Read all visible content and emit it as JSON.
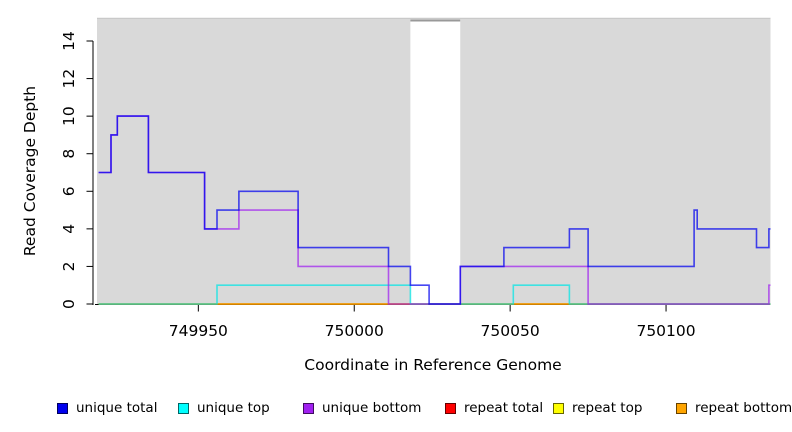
{
  "figure": {
    "xlabel": "Coordinate in Reference Genome",
    "ylabel": "Read Coverage Depth"
  },
  "legend": [
    {
      "label": "unique total",
      "color": "#0000ee"
    },
    {
      "label": "unique top",
      "color": "#00ffff"
    },
    {
      "label": "unique bottom",
      "color": "#a020f0"
    },
    {
      "label": "repeat total",
      "color": "#ff0000"
    },
    {
      "label": "repeat top",
      "color": "#ffff00"
    },
    {
      "label": "repeat bottom",
      "color": "#ffa500"
    }
  ],
  "chart_data": {
    "type": "line",
    "subtype": "step-after",
    "title": "",
    "xlabel": "Coordinate in Reference Genome",
    "ylabel": "Read Coverage Depth",
    "xlim": [
      749917.5,
      750133.5
    ],
    "ylim": [
      0,
      15.2
    ],
    "xticks": [
      749950,
      750000,
      750050,
      750100
    ],
    "yticks": [
      0,
      2,
      4,
      6,
      8,
      10,
      12,
      14
    ],
    "grid": "off",
    "legend_position": "bottom",
    "plot_background": "#d9d9d9",
    "line_alpha": 0.72,
    "no_data_gap": {
      "start": 750018,
      "end": 750034
    },
    "series": [
      {
        "name": "repeat total",
        "color": "#dd0000",
        "points": [
          [
            749918,
            0
          ]
        ]
      },
      {
        "name": "repeat top",
        "color": "#dddd00",
        "points": [
          [
            749918,
            0
          ]
        ]
      },
      {
        "name": "repeat bottom",
        "color": "#ff9900",
        "points": [
          [
            749918,
            0
          ]
        ]
      },
      {
        "name": "unique top",
        "color": "#00e5e5",
        "points": [
          [
            749918,
            0
          ],
          [
            749956,
            1
          ],
          [
            750018,
            0
          ],
          [
            750051,
            1
          ],
          [
            750069,
            0
          ]
        ]
      },
      {
        "name": "unique bottom",
        "color": "#a020f0",
        "points": [
          [
            749918,
            7
          ],
          [
            749922,
            9
          ],
          [
            749924,
            10
          ],
          [
            749934,
            7
          ],
          [
            749952,
            4
          ],
          [
            749963,
            5
          ],
          [
            749982,
            2
          ],
          [
            750011,
            0
          ],
          [
            750034,
            2
          ],
          [
            750075,
            0
          ],
          [
            750133,
            1
          ]
        ]
      },
      {
        "name": "unique total",
        "color": "#0000ee",
        "points": [
          [
            749918,
            7
          ],
          [
            749922,
            9
          ],
          [
            749924,
            10
          ],
          [
            749934,
            7
          ],
          [
            749952,
            4
          ],
          [
            749956,
            5
          ],
          [
            749963,
            6
          ],
          [
            749982,
            3
          ],
          [
            750011,
            2
          ],
          [
            750018,
            1
          ],
          [
            750024,
            0
          ],
          [
            750034,
            2
          ],
          [
            750048,
            3
          ],
          [
            750069,
            4
          ],
          [
            750075,
            2
          ],
          [
            750109,
            5
          ],
          [
            750110,
            4
          ],
          [
            750129,
            3
          ],
          [
            750133,
            4
          ]
        ]
      }
    ]
  }
}
